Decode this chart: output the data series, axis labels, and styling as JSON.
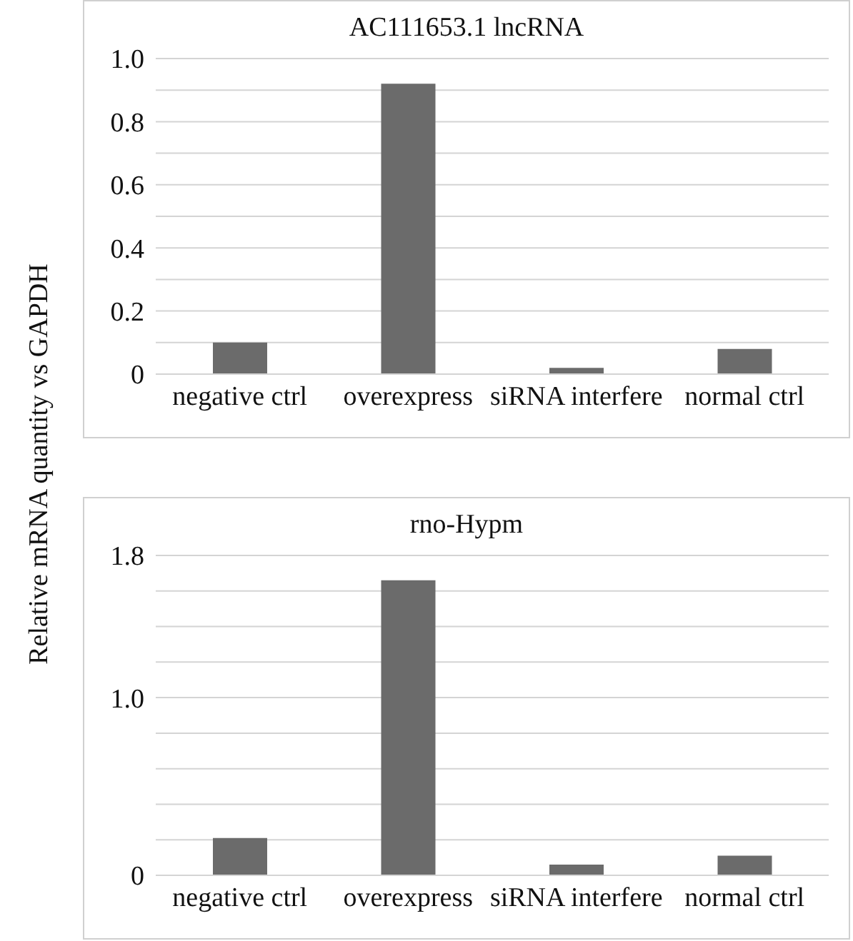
{
  "chart_data": [
    {
      "type": "bar",
      "title": "AC111653.1 lncRNA",
      "ylabel": "Relative mRNA quantity vs GAPDH",
      "categories": [
        "negative ctrl",
        "overexpress",
        "siRNA interfere",
        "normal ctrl"
      ],
      "values": [
        0.1,
        0.92,
        0.02,
        0.08
      ],
      "color": "#6b6b6b",
      "ylim": [
        0,
        1
      ],
      "yticks": [
        0,
        {
          "value": 0.1,
          "label": null
        },
        0.2,
        {
          "value": 0.3,
          "label": null
        },
        0.4,
        {
          "value": 0.5,
          "label": null
        },
        0.6,
        {
          "value": 0.7,
          "label": null
        },
        0.8,
        {
          "value": 0.9,
          "label": null
        },
        {
          "value": 1,
          "label": "1.0"
        }
      ],
      "grid": "y"
    },
    {
      "type": "bar",
      "title": "rno-Hypm",
      "categories": [
        "negative ctrl",
        "overexpress",
        "siRNA interfere",
        "normal ctrl"
      ],
      "values": [
        0.21,
        1.66,
        0.06,
        0.11
      ],
      "color": "#6b6b6b",
      "ylim": [
        0,
        1.8
      ],
      "yticks": [
        0,
        {
          "value": 0.2,
          "label": null
        },
        {
          "value": 0.4,
          "label": null
        },
        {
          "value": 0.6,
          "label": null
        },
        {
          "value": 0.8,
          "label": null
        },
        {
          "value": 1,
          "label": "1.0"
        },
        {
          "value": 1.2,
          "label": null
        },
        {
          "value": 1.4,
          "label": null
        },
        {
          "value": 1.6,
          "label": null
        },
        1.8
      ],
      "grid": "y"
    }
  ]
}
